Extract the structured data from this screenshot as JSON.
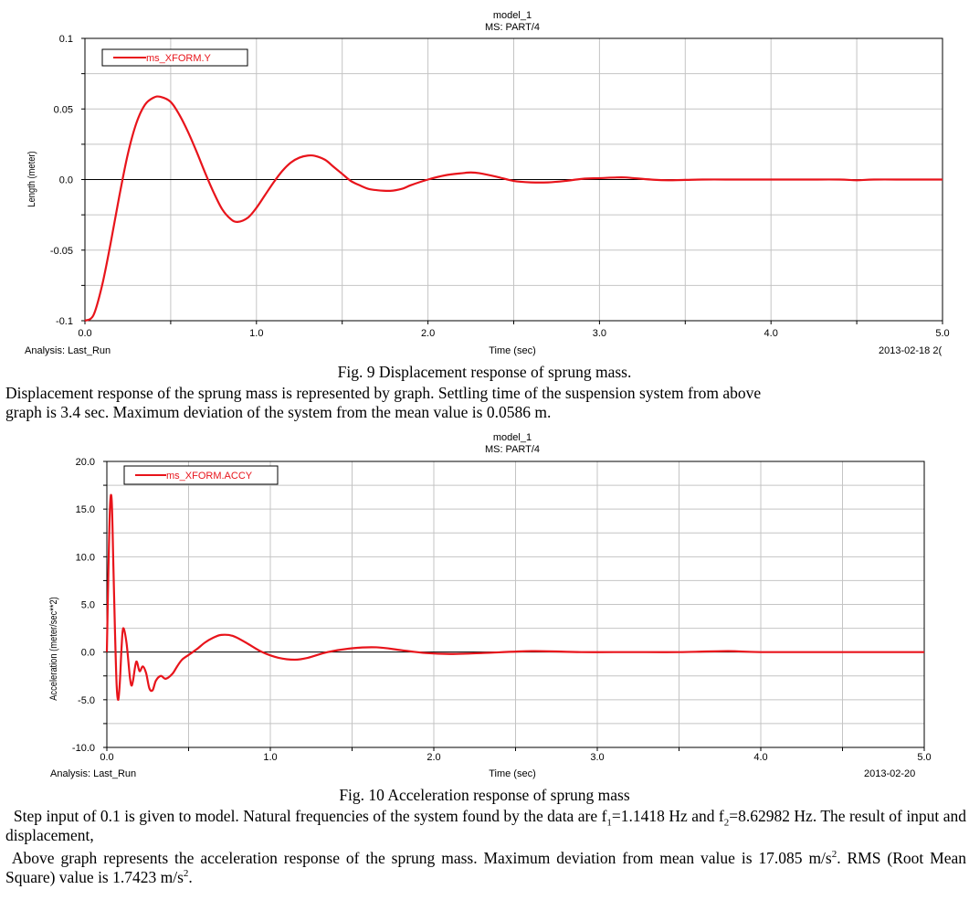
{
  "figures": [
    {
      "title": "model_1",
      "subtitle": "MS: PART/4",
      "analysis_label": "Analysis:  Last_Run",
      "xlabel": "Time (sec)",
      "ylabel": "Length (meter)",
      "date": "2013-02-18 2(",
      "legend": "ms_XFORM.Y",
      "caption": "Fig. 9 Displacement response of sprung mass."
    },
    {
      "title": "model_1",
      "subtitle": "MS: PART/4",
      "analysis_label": "Analysis:  Last_Run",
      "xlabel": "Time (sec)",
      "ylabel": "Acceleration (meter/sec**2)",
      "date": "2013-02-20",
      "legend": "ms_XFORM.ACCY",
      "caption": "Fig. 10 Acceleration response of sprung mass"
    }
  ],
  "text": {
    "p1_line1": "Displacement response of the sprung mass is represented by graph. Settling time of the suspension system from above",
    "p1_line2": "graph is 3.4 sec. Maximum deviation of the system from the mean value is 0.0586 m.",
    "p2_a": "Step input of 0.1 is given to model.  Natural frequencies of the system found by the data are f",
    "p2_sub1": "1",
    "p2_b": "=1.1418 Hz and f",
    "p2_sub2": "2",
    "p2_c": "=8.62982 Hz. The result of input and displacement,",
    "p3_a": "Above graph represents the acceleration response of the sprung mass. Maximum deviation from mean value is 17.085 m/s",
    "p3_sup1": "2",
    "p3_b": ". RMS (Root Mean Square) value is 1.7423 m/s",
    "p3_sup2": "2",
    "p3_c": "."
  },
  "chart_data": [
    {
      "type": "line",
      "title": "model_1",
      "subtitle": "MS: PART/4",
      "xlabel": "Time (sec)",
      "ylabel": "Length (meter)",
      "xlim": [
        0,
        5
      ],
      "ylim": [
        -0.1,
        0.1
      ],
      "xticks": [
        0,
        1,
        2,
        3,
        4,
        5
      ],
      "xtick_labels": [
        "0.0",
        "1.0",
        "2.0",
        "3.0",
        "4.0",
        "5.0"
      ],
      "yticks": [
        -0.1,
        -0.05,
        0,
        0.05,
        0.1
      ],
      "ytick_labels": [
        "-0.1",
        "-0.05",
        "0.0",
        "0.05",
        "0.1"
      ],
      "grid": true,
      "legend_position": "top-left",
      "color": "#e8141b",
      "series": [
        {
          "name": "ms_XFORM.Y",
          "x": [
            0,
            0.05,
            0.1,
            0.15,
            0.2,
            0.25,
            0.3,
            0.35,
            0.4,
            0.44,
            0.5,
            0.55,
            0.6,
            0.65,
            0.7,
            0.75,
            0.8,
            0.85,
            0.89,
            0.95,
            1.0,
            1.05,
            1.1,
            1.15,
            1.2,
            1.25,
            1.3,
            1.34,
            1.4,
            1.45,
            1.5,
            1.55,
            1.6,
            1.65,
            1.7,
            1.78,
            1.85,
            1.9,
            2.0,
            2.1,
            2.2,
            2.25,
            2.3,
            2.4,
            2.5,
            2.6,
            2.7,
            2.8,
            2.9,
            3.0,
            3.1,
            3.15,
            3.2,
            3.3,
            3.4,
            3.6,
            3.8,
            4.0,
            4.2,
            4.4,
            4.5,
            4.6,
            4.8,
            5.0
          ],
          "y": [
            -0.1,
            -0.096,
            -0.075,
            -0.045,
            -0.012,
            0.018,
            0.04,
            0.053,
            0.058,
            0.0586,
            0.055,
            0.046,
            0.034,
            0.02,
            0.005,
            -0.009,
            -0.021,
            -0.028,
            -0.03,
            -0.027,
            -0.02,
            -0.011,
            -0.002,
            0.006,
            0.012,
            0.0155,
            0.017,
            0.0168,
            0.014,
            0.009,
            0.004,
            -0.001,
            -0.004,
            -0.0065,
            -0.0075,
            -0.008,
            -0.0065,
            -0.004,
            0.0,
            0.003,
            0.0045,
            0.005,
            0.0045,
            0.002,
            -0.001,
            -0.002,
            -0.002,
            -0.001,
            0.0005,
            0.001,
            0.0015,
            0.0015,
            0.001,
            0.0,
            -0.0005,
            0.0,
            0.0,
            0.0,
            0.0,
            0.0,
            -0.0005,
            0.0,
            0.0,
            0.0
          ]
        }
      ]
    },
    {
      "type": "line",
      "title": "model_1",
      "subtitle": "MS: PART/4",
      "xlabel": "Time (sec)",
      "ylabel": "Acceleration (meter/sec**2)",
      "xlim": [
        0,
        5
      ],
      "ylim": [
        -10,
        20
      ],
      "xticks": [
        0,
        1,
        2,
        3,
        4,
        5
      ],
      "xtick_labels": [
        "0.0",
        "1.0",
        "2.0",
        "3.0",
        "4.0",
        "5.0"
      ],
      "yticks": [
        -10,
        -5,
        0,
        5,
        10,
        15,
        20
      ],
      "ytick_labels": [
        "-10.0",
        "-5.0",
        "0.0",
        "5.0",
        "10.0",
        "15.0",
        "20.0"
      ],
      "grid": true,
      "legend_position": "top-left",
      "color": "#e8141b",
      "series": [
        {
          "name": "ms_XFORM.ACCY",
          "x": [
            0,
            0.01,
            0.02,
            0.03,
            0.04,
            0.05,
            0.06,
            0.07,
            0.08,
            0.09,
            0.1,
            0.12,
            0.14,
            0.15,
            0.16,
            0.18,
            0.2,
            0.22,
            0.24,
            0.26,
            0.28,
            0.3,
            0.33,
            0.36,
            0.4,
            0.43,
            0.46,
            0.5,
            0.55,
            0.6,
            0.65,
            0.7,
            0.77,
            0.85,
            0.95,
            1.05,
            1.15,
            1.23,
            1.35,
            1.5,
            1.65,
            1.8,
            1.95,
            2.1,
            2.3,
            2.6,
            2.9,
            3.2,
            3.5,
            3.8,
            4.0,
            4.5,
            5.0
          ],
          "y": [
            0,
            9,
            15.5,
            15.8,
            9,
            2,
            -3.5,
            -5,
            -3,
            0.5,
            2.5,
            1,
            -2.5,
            -3.5,
            -3,
            -1,
            -2,
            -1.5,
            -2.2,
            -3.8,
            -4,
            -3,
            -2.5,
            -2.8,
            -2.3,
            -1.5,
            -0.8,
            -0.3,
            0.3,
            1.0,
            1.5,
            1.8,
            1.7,
            1.0,
            0.0,
            -0.6,
            -0.8,
            -0.6,
            0.0,
            0.4,
            0.5,
            0.2,
            -0.1,
            -0.2,
            -0.1,
            0.1,
            0.0,
            0.0,
            0.0,
            0.1,
            0.0,
            0.0,
            0.0
          ]
        }
      ]
    }
  ]
}
